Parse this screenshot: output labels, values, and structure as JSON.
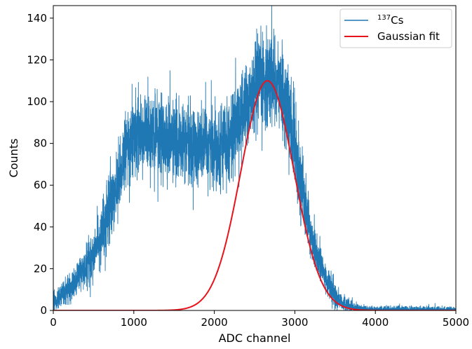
{
  "chart_data": {
    "type": "line",
    "title": "",
    "xlabel": "ADC channel",
    "ylabel": "Counts",
    "xlim": [
      0,
      5000
    ],
    "ylim": [
      0,
      146
    ],
    "xticks": [
      0,
      1000,
      2000,
      3000,
      4000,
      5000
    ],
    "yticks": [
      0,
      20,
      40,
      60,
      80,
      100,
      120,
      140
    ],
    "grid": false,
    "legend_position": "top-right",
    "series": [
      {
        "name": "137Cs",
        "legend_base": "Cs",
        "legend_sup": "137",
        "color": "#1f77b4",
        "style": "noisy histogram",
        "envelope_x": [
          0,
          100,
          200,
          300,
          400,
          500,
          600,
          700,
          800,
          900,
          1000,
          1100,
          1200,
          1400,
          1600,
          1800,
          2000,
          2100,
          2200,
          2300,
          2400,
          2500,
          2600,
          2700,
          2800,
          2900,
          3000,
          3100,
          3200,
          3300,
          3400,
          3500,
          3600,
          3700,
          3800,
          4000,
          4500,
          5000
        ],
        "envelope_y": [
          5,
          8,
          11,
          16,
          21,
          28,
          36,
          48,
          62,
          76,
          84,
          85,
          84,
          82,
          80,
          79,
          79,
          80,
          83,
          90,
          98,
          104,
          110,
          112,
          108,
          96,
          80,
          56,
          36,
          24,
          14,
          7,
          3.5,
          1.5,
          0.8,
          0.5,
          0.4,
          0.3
        ]
      },
      {
        "name": "Gaussian fit",
        "color": "#e8141c",
        "style": "gaussian",
        "amplitude": 110,
        "mean": 2660,
        "sigma": 330
      }
    ]
  }
}
